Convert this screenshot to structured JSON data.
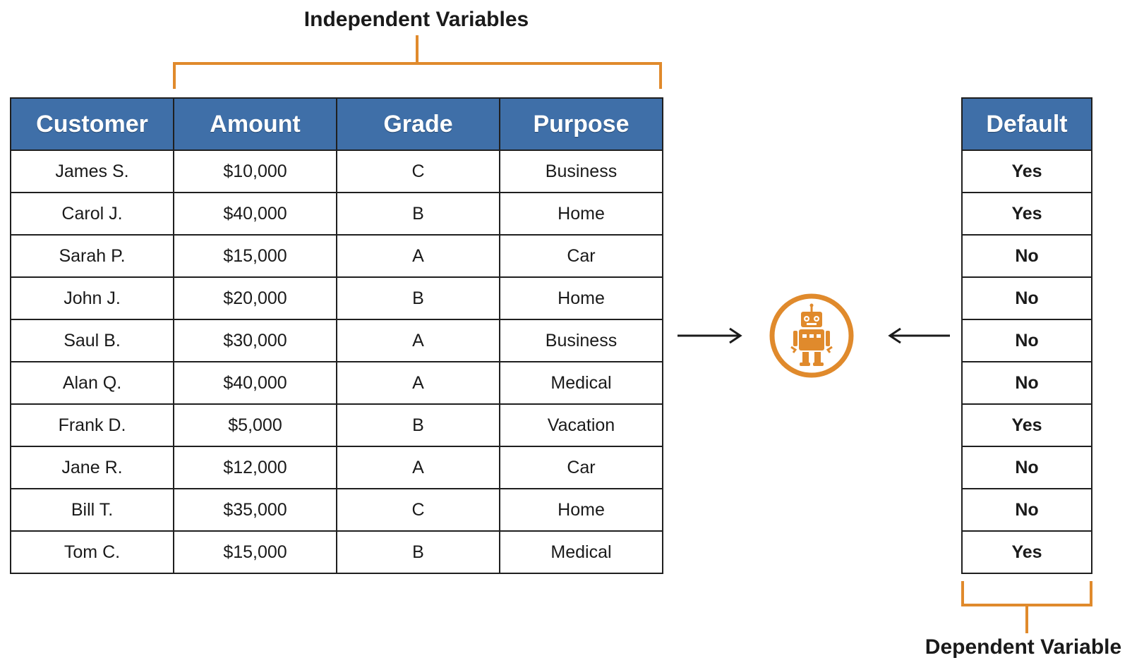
{
  "labels": {
    "independent": "Independent Variables",
    "dependent": "Dependent Variable"
  },
  "features": {
    "headers": [
      "Customer",
      "Amount",
      "Grade",
      "Purpose"
    ],
    "rows": [
      [
        "James S.",
        "$10,000",
        "C",
        "Business"
      ],
      [
        "Carol J.",
        "$40,000",
        "B",
        "Home"
      ],
      [
        "Sarah P.",
        "$15,000",
        "A",
        "Car"
      ],
      [
        "John J.",
        "$20,000",
        "B",
        "Home"
      ],
      [
        "Saul B.",
        "$30,000",
        "A",
        "Business"
      ],
      [
        "Alan Q.",
        "$40,000",
        "A",
        "Medical"
      ],
      [
        "Frank D.",
        "$5,000",
        "B",
        "Vacation"
      ],
      [
        "Jane R.",
        "$12,000",
        "A",
        "Car"
      ],
      [
        "Bill T.",
        "$35,000",
        "C",
        "Home"
      ],
      [
        "Tom C.",
        "$15,000",
        "B",
        "Medical"
      ]
    ]
  },
  "target": {
    "header": "Default",
    "values": [
      "Yes",
      "Yes",
      "No",
      "No",
      "No",
      "No",
      "Yes",
      "No",
      "No",
      "Yes"
    ]
  },
  "icons": {
    "model": "robot-icon",
    "left_arrow": "arrow-right-icon",
    "right_arrow": "arrow-left-icon"
  },
  "colors": {
    "header_blue": "#3f6fa8",
    "accent_orange": "#e08a2c"
  }
}
